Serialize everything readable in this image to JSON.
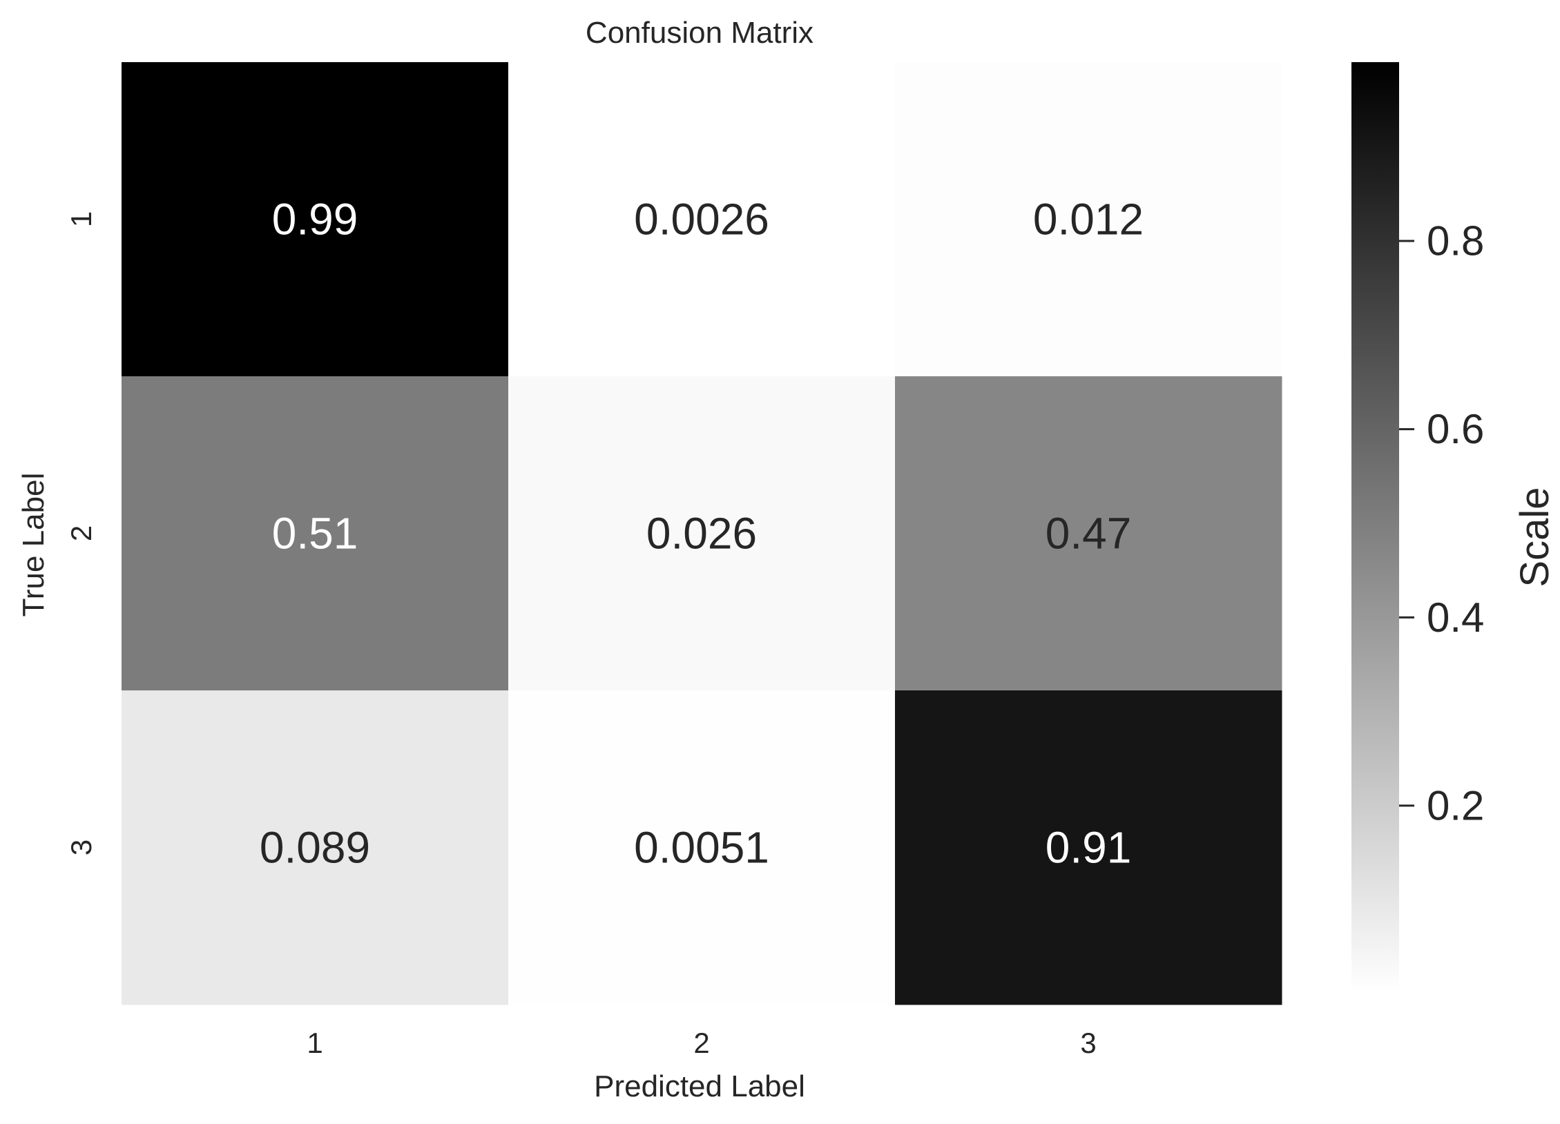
{
  "chart_data": {
    "type": "heatmap",
    "title": "Confusion Matrix",
    "xlabel": "Predicted Label",
    "ylabel": "True Label",
    "x_categories": [
      "1",
      "2",
      "3"
    ],
    "y_categories": [
      "1",
      "2",
      "3"
    ],
    "values": [
      [
        0.99,
        0.0026,
        0.012
      ],
      [
        0.51,
        0.026,
        0.47
      ],
      [
        0.089,
        0.0051,
        0.91
      ]
    ],
    "cell_labels": [
      [
        "0.99",
        "0.0026",
        "0.012"
      ],
      [
        "0.51",
        "0.026",
        "0.47"
      ],
      [
        "0.089",
        "0.0051",
        "0.91"
      ]
    ],
    "colormap": {
      "low_color": "#ffffff",
      "high_color": "#000000",
      "vmin": 0.0026,
      "vmax": 0.99
    },
    "colorbar": {
      "label": "Scale",
      "ticks": [
        0.2,
        0.4,
        0.6,
        0.8
      ],
      "tick_labels": [
        "0.2",
        "0.4",
        "0.6",
        "0.8"
      ]
    },
    "text_colors": {
      "on_dark": "#ffffff",
      "on_light": "#262626"
    },
    "grid": false
  }
}
